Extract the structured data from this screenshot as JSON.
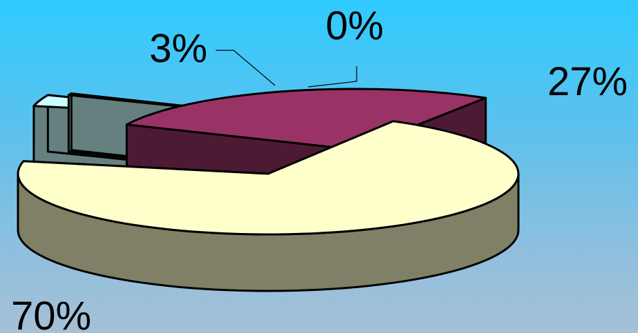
{
  "chart_data": {
    "type": "pie",
    "style": "3d-exploded",
    "title": "",
    "legend": "none",
    "slices": [
      {
        "label": "70%",
        "value": 70,
        "top_color": "#ffffcc",
        "side_color": "#808066"
      },
      {
        "label": "3%",
        "value": 3,
        "top_color": "#ccffff",
        "side_color": "#668080"
      },
      {
        "label": "0%",
        "value": 0,
        "top_color": "#ccffff",
        "side_color": "#668080"
      },
      {
        "label": "27%",
        "value": 27,
        "top_color": "#993366",
        "side_color": "#4d1a33"
      }
    ]
  }
}
